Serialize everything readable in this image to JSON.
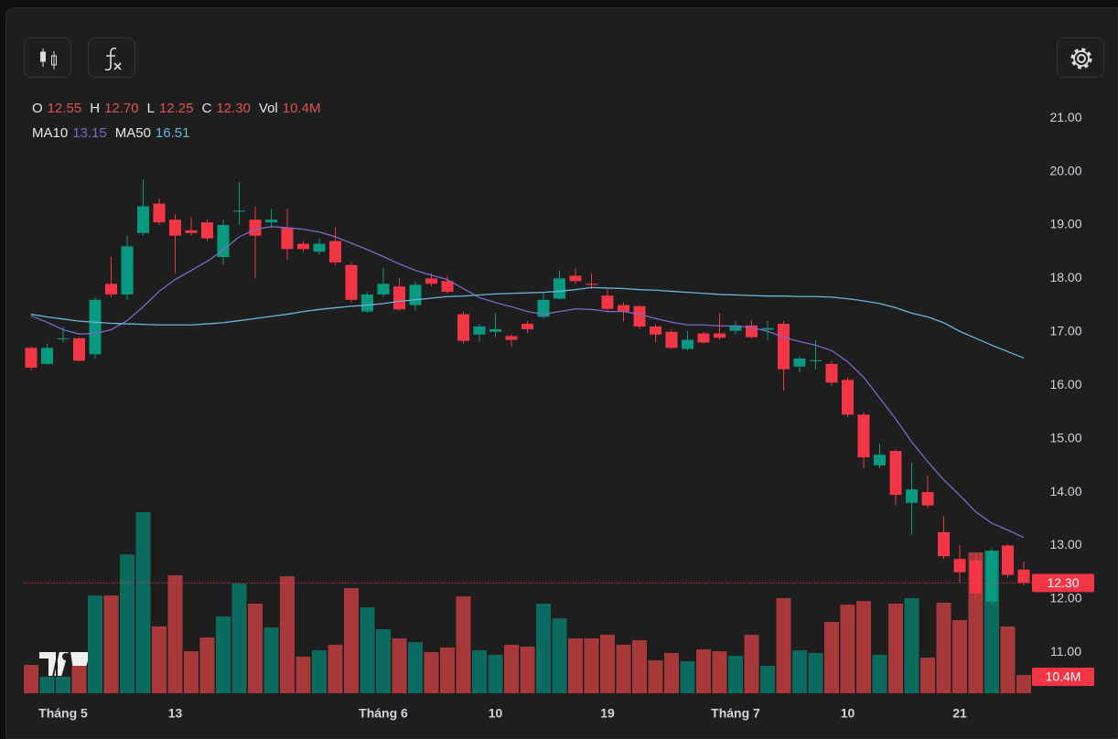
{
  "chart_data": {
    "type": "candlestick",
    "categories": [
      null,
      null,
      "Tháng 5",
      null,
      null,
      null,
      null,
      null,
      null,
      "13",
      null,
      null,
      null,
      null,
      null,
      null,
      null,
      null,
      null,
      null,
      null,
      null,
      "Tháng 6",
      null,
      null,
      null,
      null,
      null,
      null,
      "10",
      null,
      null,
      null,
      null,
      null,
      null,
      "19",
      null,
      null,
      null,
      null,
      null,
      null,
      null,
      "Tháng 7",
      null,
      null,
      null,
      null,
      null,
      null,
      "10",
      null,
      null,
      null,
      null,
      null,
      null,
      "21",
      null,
      null,
      null,
      null
    ],
    "open": [
      16.7,
      16.4,
      16.87,
      16.88,
      16.58,
      17.9,
      17.7,
      18.85,
      19.4,
      19.1,
      18.9,
      19.05,
      18.4,
      19.25,
      19.1,
      19.05,
      18.95,
      18.65,
      18.5,
      18.7,
      18.25,
      17.38,
      17.7,
      17.85,
      17.5,
      18.0,
      17.95,
      17.33,
      16.95,
      17.0,
      16.92,
      17.15,
      17.28,
      17.62,
      18.05,
      17.9,
      17.68,
      17.5,
      17.48,
      17.1,
      17.0,
      16.68,
      16.97,
      16.97,
      17.02,
      17.12,
      17.04,
      17.15,
      16.35,
      16.45,
      16.4,
      16.1,
      15.45,
      14.5,
      14.77,
      13.8,
      14.0,
      13.25,
      12.75,
      12.72,
      11.95,
      13.0,
      12.55
    ],
    "high": [
      16.73,
      16.78,
      17.1,
      16.9,
      17.65,
      18.4,
      18.8,
      19.85,
      19.5,
      19.2,
      19.15,
      19.1,
      19.1,
      19.8,
      19.35,
      19.3,
      19.3,
      18.7,
      18.75,
      18.95,
      18.3,
      17.75,
      18.2,
      18.0,
      17.95,
      18.1,
      18.05,
      17.38,
      17.15,
      17.35,
      16.95,
      17.2,
      17.72,
      18.15,
      18.2,
      18.1,
      17.8,
      17.55,
      17.5,
      17.15,
      17.05,
      17.02,
      17.0,
      17.35,
      17.2,
      17.22,
      17.2,
      17.2,
      16.55,
      16.85,
      16.45,
      16.15,
      15.5,
      14.9,
      14.8,
      14.55,
      14.3,
      13.55,
      13.0,
      12.85,
      12.95,
      13.02,
      12.7
    ],
    "low": [
      16.28,
      16.38,
      16.8,
      16.45,
      16.5,
      17.65,
      17.6,
      18.8,
      19.0,
      18.1,
      18.8,
      18.7,
      18.25,
      19.0,
      18.0,
      18.95,
      18.35,
      18.5,
      18.45,
      18.25,
      17.55,
      17.35,
      17.65,
      17.4,
      17.4,
      17.85,
      17.72,
      16.78,
      16.82,
      16.9,
      16.72,
      16.98,
      17.25,
      17.6,
      17.9,
      17.8,
      17.4,
      17.2,
      17.05,
      16.8,
      16.68,
      16.65,
      16.78,
      16.85,
      16.95,
      16.87,
      16.85,
      15.9,
      16.25,
      16.3,
      16.0,
      15.4,
      14.45,
      14.45,
      13.75,
      13.2,
      13.7,
      12.75,
      12.3,
      11.95,
      11.9,
      12.4,
      12.25
    ],
    "close": [
      16.33,
      16.7,
      16.88,
      16.46,
      17.6,
      17.7,
      18.6,
      19.35,
      19.05,
      18.8,
      18.85,
      18.75,
      19.0,
      19.27,
      18.8,
      19.1,
      18.55,
      18.55,
      18.65,
      18.3,
      17.6,
      17.7,
      17.9,
      17.42,
      17.88,
      17.9,
      17.75,
      16.83,
      17.1,
      17.05,
      16.85,
      17.05,
      17.6,
      18.0,
      17.95,
      17.88,
      17.43,
      17.38,
      17.1,
      16.95,
      16.7,
      16.85,
      16.8,
      16.89,
      17.12,
      16.9,
      17.07,
      16.3,
      16.5,
      16.47,
      16.05,
      15.45,
      14.65,
      14.7,
      13.95,
      14.05,
      13.75,
      12.8,
      12.5,
      12.1,
      12.9,
      12.45,
      12.3
    ],
    "volume": [
      16.1,
      9.4,
      9.4,
      15.6,
      55.6,
      55.6,
      79.0,
      103.0,
      38.0,
      67.1,
      23.9,
      31.7,
      43.7,
      62.4,
      51.0,
      37.4,
      66.6,
      20.8,
      24.4,
      27.6,
      59.8,
      48.9,
      36.4,
      31.2,
      29.1,
      23.4,
      26.0,
      55.1,
      24.4,
      21.8,
      27.6,
      26.5,
      51.0,
      42.6,
      31.2,
      31.2,
      33.3,
      27.6,
      30.2,
      18.7,
      22.9,
      18.2,
      25.0,
      23.9,
      21.3,
      33.3,
      15.6,
      54.1,
      24.4,
      22.9,
      40.6,
      50.4,
      52.5,
      21.8,
      51.0,
      54.1,
      20.3,
      51.5,
      41.6,
      80.1,
      81.1,
      38.0,
      10.4
    ],
    "up_color": "#089981",
    "down_color": "#f23645",
    "volume_colors": {
      "up": "#0b6b5e",
      "down": "#a8393b"
    },
    "header": [
      {
        "label": "O",
        "value": "12.55"
      },
      {
        "label": "H",
        "value": "12.70"
      },
      {
        "label": "L",
        "value": "12.25"
      },
      {
        "label": "C",
        "value": "12.30"
      },
      {
        "label": "Vol",
        "value": "10.4M"
      }
    ],
    "series": [
      {
        "name": "MA10",
        "color": "#7b68c8",
        "value_label": "13.15",
        "values": [
          17.3,
          17.18,
          17.04,
          16.96,
          16.97,
          17.04,
          17.21,
          17.47,
          17.76,
          17.98,
          18.15,
          18.32,
          18.53,
          18.78,
          18.92,
          18.97,
          18.95,
          18.92,
          18.87,
          18.78,
          18.66,
          18.54,
          18.41,
          18.27,
          18.15,
          18.06,
          17.98,
          17.81,
          17.64,
          17.55,
          17.47,
          17.38,
          17.33,
          17.38,
          17.43,
          17.42,
          17.38,
          17.38,
          17.33,
          17.25,
          17.18,
          17.13,
          17.13,
          17.11,
          17.11,
          17.08,
          17.01,
          16.9,
          16.82,
          16.75,
          16.65,
          16.44,
          16.15,
          15.76,
          15.37,
          14.94,
          14.57,
          14.23,
          13.94,
          13.63,
          13.42,
          13.29,
          13.15
        ]
      },
      {
        "name": "MA50",
        "color": "#6cb4dc",
        "value_label": "16.51",
        "values": [
          17.33,
          17.28,
          17.24,
          17.2,
          17.18,
          17.16,
          17.15,
          17.14,
          17.13,
          17.13,
          17.13,
          17.15,
          17.17,
          17.21,
          17.25,
          17.29,
          17.33,
          17.38,
          17.42,
          17.45,
          17.48,
          17.5,
          17.53,
          17.57,
          17.6,
          17.63,
          17.66,
          17.67,
          17.69,
          17.71,
          17.72,
          17.73,
          17.74,
          17.76,
          17.79,
          17.83,
          17.82,
          17.81,
          17.79,
          17.78,
          17.76,
          17.74,
          17.72,
          17.7,
          17.69,
          17.68,
          17.67,
          17.67,
          17.66,
          17.66,
          17.65,
          17.62,
          17.58,
          17.53,
          17.45,
          17.35,
          17.28,
          17.17,
          17.01,
          16.88,
          16.75,
          16.63,
          16.51
        ]
      }
    ],
    "ylim": [
      10.2,
      21.5
    ],
    "yticks": [
      {
        "value": 11,
        "label": "11.00"
      },
      {
        "value": 12,
        "label": "12.00"
      },
      {
        "value": 13,
        "label": "13.00"
      },
      {
        "value": 14,
        "label": "14.00"
      },
      {
        "value": 15,
        "label": "15.00"
      },
      {
        "value": 16,
        "label": "16.00"
      },
      {
        "value": 17,
        "label": "17.00"
      },
      {
        "value": 18,
        "label": "18.00"
      },
      {
        "value": 19,
        "label": "19.00"
      },
      {
        "value": 20,
        "label": "20.00"
      },
      {
        "value": 21,
        "label": "21.00"
      }
    ]
  }
}
